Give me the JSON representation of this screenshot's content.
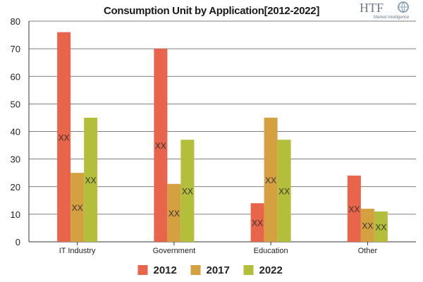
{
  "chart_data": {
    "type": "bar",
    "title": "Consumption Unit by  Application[2012-2022]",
    "categories": [
      "IT Industry",
      "Government",
      "Education",
      "Other"
    ],
    "series": [
      {
        "name": "2012",
        "color": "#e8644a",
        "values": [
          76,
          70,
          14,
          24
        ]
      },
      {
        "name": "2017",
        "color": "#d4a040",
        "values": [
          25,
          21,
          45,
          12
        ]
      },
      {
        "name": "2022",
        "color": "#b3bf3a",
        "values": [
          45,
          37,
          37,
          11
        ]
      }
    ],
    "data_labels": [
      [
        "XX",
        "XX",
        "XX"
      ],
      [
        "XX",
        "XX",
        "XX"
      ],
      [
        "XX",
        "XX",
        "XX"
      ],
      [
        "XX",
        "XX",
        "XX"
      ]
    ],
    "ylim": [
      0,
      80
    ],
    "yticks": [
      0,
      10,
      20,
      30,
      40,
      50,
      60,
      70,
      80
    ],
    "xlabel": "",
    "ylabel": "",
    "grid": true,
    "legend_position": "bottom"
  },
  "logo": {
    "brand": "HTF",
    "tagline": "Market Intelligence"
  }
}
